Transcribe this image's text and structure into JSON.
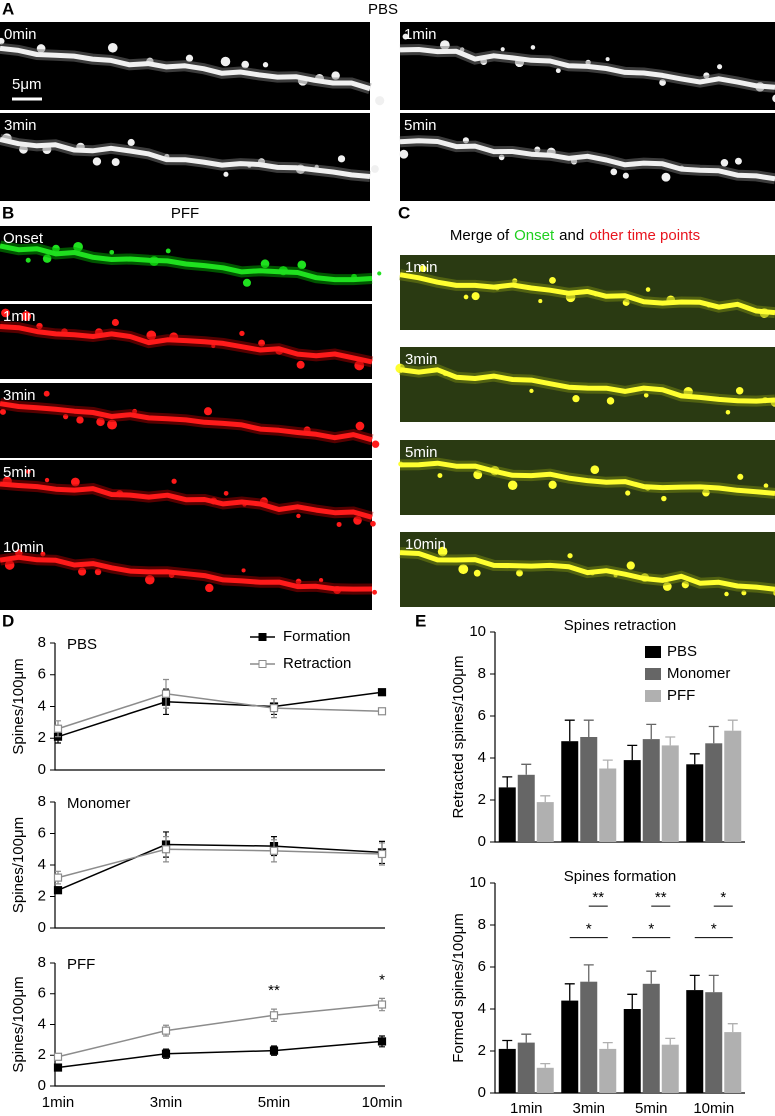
{
  "panels": {
    "A": {
      "letter": "A",
      "title": "PBS",
      "labels": [
        "0min",
        "1min",
        "3min",
        "5min"
      ],
      "scale_bar": "5μm"
    },
    "B": {
      "letter": "B",
      "title": "PFF",
      "labels": [
        "Onset",
        "1min",
        "3min",
        "5min",
        "10min"
      ]
    },
    "C": {
      "letter": "C",
      "title_parts": [
        "Merge of",
        "Onset",
        "and",
        "other time points"
      ],
      "labels": [
        "1min",
        "3min",
        "5min",
        "10min"
      ]
    },
    "D": {
      "letter": "D"
    },
    "E": {
      "letter": "E"
    }
  },
  "chart_data": [
    {
      "type": "line",
      "title": "PBS",
      "y_label": "Spines/100μm",
      "ylim": [
        0,
        8
      ],
      "yticks": [
        0,
        2,
        4,
        6,
        8
      ],
      "legend": "upper-right",
      "series": [
        {
          "name": "Formation",
          "color": "#000000",
          "marker": "filled-square",
          "values": [
            2.1,
            4.3,
            4.0,
            4.9
          ],
          "errors": [
            0.4,
            0.8,
            0.5,
            0.1
          ]
        },
        {
          "name": "Retraction",
          "color": "#8c8c8c",
          "marker": "open-square",
          "values": [
            2.6,
            4.8,
            3.9,
            3.7
          ],
          "errors": [
            0.5,
            0.9,
            0.6,
            0.2
          ]
        }
      ]
    },
    {
      "type": "line",
      "title": "Monomer",
      "y_label": "Spines/100μm",
      "ylim": [
        0,
        8
      ],
      "yticks": [
        0,
        2,
        4,
        6,
        8
      ],
      "series": [
        {
          "color": "#000000",
          "marker": "filled-square",
          "values": [
            2.4,
            5.3,
            5.2,
            4.8
          ],
          "errors": [
            0.2,
            0.8,
            0.6,
            0.7
          ]
        },
        {
          "color": "#8c8c8c",
          "marker": "open-square",
          "values": [
            3.2,
            5.0,
            4.9,
            4.7
          ],
          "errors": [
            0.4,
            0.8,
            0.7,
            0.7
          ]
        }
      ]
    },
    {
      "type": "line",
      "title": "PFF",
      "y_label": "Spines/100μm",
      "ylim": [
        0,
        8
      ],
      "yticks": [
        0,
        2,
        4,
        6,
        8
      ],
      "categories": [
        "1min",
        "3min",
        "5min",
        "10min"
      ],
      "annotations": [
        "**",
        "*"
      ],
      "series": [
        {
          "color": "#000000",
          "marker": "filled-square",
          "values": [
            1.2,
            2.1,
            2.3,
            2.9
          ],
          "errors": [
            0.2,
            0.3,
            0.3,
            0.35
          ]
        },
        {
          "color": "#8c8c8c",
          "marker": "open-square",
          "values": [
            1.9,
            3.6,
            4.6,
            5.3
          ],
          "errors": [
            0.2,
            0.35,
            0.4,
            0.4
          ]
        }
      ]
    },
    {
      "type": "bar",
      "title": "Spines retraction",
      "y_label": "Retracted spines/100μm",
      "ylim": [
        0,
        10
      ],
      "yticks": [
        0,
        2,
        4,
        6,
        8,
        10
      ],
      "legend": "upper-right",
      "series": [
        {
          "name": "PBS",
          "color": "#000000",
          "values": [
            2.6,
            4.8,
            3.9,
            3.7
          ],
          "errors": [
            0.5,
            1.0,
            0.7,
            0.5
          ]
        },
        {
          "name": "Monomer",
          "color": "#666666",
          "values": [
            3.2,
            5.0,
            4.9,
            4.7
          ],
          "errors": [
            0.5,
            0.8,
            0.7,
            0.8
          ]
        },
        {
          "name": "PFF",
          "color": "#b0b0b0",
          "values": [
            1.9,
            3.5,
            4.6,
            5.3
          ],
          "errors": [
            0.3,
            0.4,
            0.4,
            0.5
          ]
        }
      ]
    },
    {
      "type": "bar",
      "title": "Spines formation",
      "y_label": "Formed spines/100μm",
      "ylim": [
        0,
        10
      ],
      "yticks": [
        0,
        2,
        4,
        6,
        8,
        10
      ],
      "categories": [
        "1min",
        "3min",
        "5min",
        "10min"
      ],
      "annotations": [
        "**",
        "*",
        "**",
        "*",
        "*",
        "*"
      ],
      "series": [
        {
          "color": "#000000",
          "values": [
            2.1,
            4.4,
            4.0,
            4.9
          ],
          "errors": [
            0.4,
            0.8,
            0.7,
            0.7
          ]
        },
        {
          "color": "#666666",
          "values": [
            2.4,
            5.3,
            5.2,
            4.8
          ],
          "errors": [
            0.4,
            0.8,
            0.6,
            0.8
          ]
        },
        {
          "color": "#b0b0b0",
          "values": [
            1.2,
            2.1,
            2.3,
            2.9
          ],
          "errors": [
            0.2,
            0.3,
            0.3,
            0.4
          ]
        }
      ]
    }
  ]
}
